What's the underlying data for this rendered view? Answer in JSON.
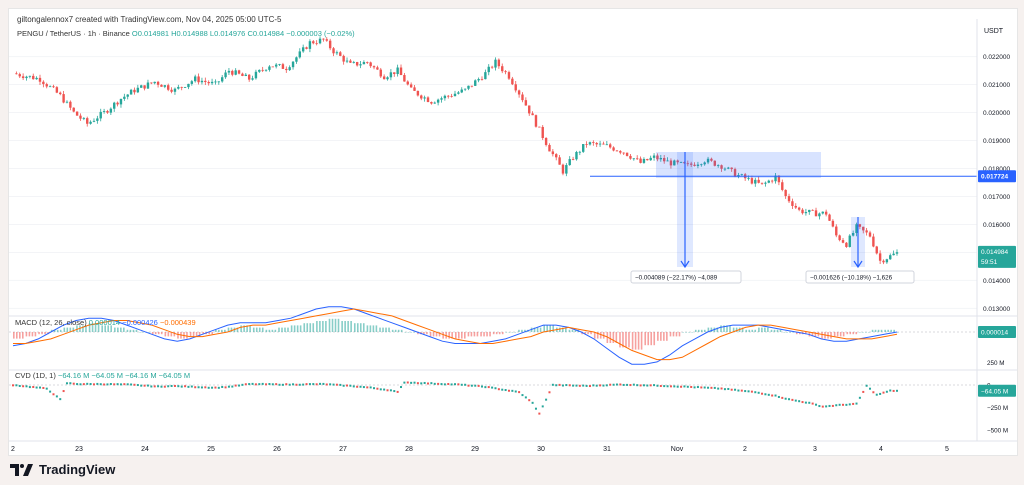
{
  "header": {
    "attribution": "giltongalennox7 created with TradingView.com, Nov 04, 2025 05:00 UTC-5",
    "symbol": "PENGU / TetherUS · 1h · Binance",
    "ohlc": "O0.014981 H0.014988 L0.014976 C0.014984 −0.000003 (−0.02%)",
    "currency": "USDT"
  },
  "macd_title": {
    "name": "MACD (12, 26, close)",
    "v1": "0.000014",
    "v2": "−0.000426",
    "v3": "−0.000439",
    "last": "0.000014"
  },
  "cvd_title": {
    "name": "CVD (1D, 1)",
    "v1": "−64.16 M",
    "v2": "−64.05 M",
    "v3": "−64.16 M",
    "v4": "−64.05 M",
    "last": "−64.05 M"
  },
  "brand": "TradingView",
  "colors": {
    "up": "#26a69a",
    "down": "#ef5350",
    "level": "#2962ff",
    "macd": "#2962ff",
    "signal": "#ff6d00"
  },
  "chart_data": {
    "type": "candlestick",
    "price_ticks": [
      "0.022000",
      "0.021000",
      "0.020000",
      "0.019000",
      "0.018000",
      "0.017000",
      "0.016000",
      "0.015000",
      "0.014000",
      "0.013000"
    ],
    "y_range": [
      0.0128,
      0.0232
    ],
    "x_labels": [
      "2",
      "23",
      "24",
      "25",
      "26",
      "27",
      "28",
      "29",
      "30",
      "31",
      "Nov",
      "2",
      "3",
      "4",
      "5"
    ],
    "level": {
      "price": 0.017724,
      "label": "0.017724"
    },
    "last_price": {
      "price": 0.014984,
      "label": "0.014984",
      "countdown": "59:51"
    },
    "measure_1": "−0.004089 (−22.17%) −4,089",
    "measure_2": "−0.001626 (−10.18%) −1,626",
    "path": [
      [
        0,
        0.0214
      ],
      [
        8,
        0.0212
      ],
      [
        14,
        0.0206
      ],
      [
        18,
        0.02
      ],
      [
        22,
        0.0196
      ],
      [
        27,
        0.02
      ],
      [
        32,
        0.0205
      ],
      [
        36,
        0.0208
      ],
      [
        42,
        0.0211
      ],
      [
        48,
        0.0208
      ],
      [
        54,
        0.0212
      ],
      [
        60,
        0.021
      ],
      [
        64,
        0.0215
      ],
      [
        70,
        0.0212
      ],
      [
        76,
        0.0217
      ],
      [
        81,
        0.0216
      ],
      [
        85,
        0.0221
      ],
      [
        88,
        0.0225
      ],
      [
        92,
        0.0226
      ],
      [
        95,
        0.0222
      ],
      [
        100,
        0.0217
      ],
      [
        105,
        0.0218
      ],
      [
        110,
        0.0213
      ],
      [
        114,
        0.0215
      ],
      [
        118,
        0.0208
      ],
      [
        124,
        0.0204
      ],
      [
        129,
        0.0206
      ],
      [
        134,
        0.0208
      ],
      [
        140,
        0.0214
      ],
      [
        143,
        0.0218
      ],
      [
        147,
        0.0213
      ],
      [
        151,
        0.0205
      ],
      [
        155,
        0.0196
      ],
      [
        159,
        0.0187
      ],
      [
        163,
        0.0179
      ],
      [
        166,
        0.0184
      ],
      [
        170,
        0.0189
      ],
      [
        176,
        0.0188
      ],
      [
        181,
        0.0186
      ],
      [
        186,
        0.0182
      ],
      [
        190,
        0.0184
      ],
      [
        195,
        0.0182
      ],
      [
        200,
        0.0181
      ],
      [
        205,
        0.0183
      ],
      [
        210,
        0.0181
      ],
      [
        214,
        0.0178
      ],
      [
        218,
        0.0176
      ],
      [
        222,
        0.0174
      ],
      [
        226,
        0.0177
      ],
      [
        229,
        0.017
      ],
      [
        233,
        0.0165
      ],
      [
        237,
        0.0164
      ],
      [
        241,
        0.0164
      ],
      [
        244,
        0.0156
      ],
      [
        247,
        0.0153
      ],
      [
        250,
        0.0159
      ],
      [
        254,
        0.0156
      ],
      [
        257,
        0.0147
      ],
      [
        262,
        0.01498
      ]
    ],
    "macd": {
      "hist": [
        -3,
        -2,
        -1,
        1,
        2,
        3,
        4,
        3,
        2,
        1,
        0,
        -1,
        -2,
        -3,
        -2,
        -1,
        1,
        2,
        3,
        2,
        1,
        2,
        3,
        4,
        5,
        6,
        5,
        4,
        3,
        2,
        1,
        0,
        -1,
        -2,
        -3,
        -3,
        -2,
        -2,
        -1,
        0,
        1,
        2,
        3,
        2,
        1,
        -1,
        -3,
        -5,
        -7,
        -8,
        -6,
        -4,
        -2,
        0,
        1,
        2,
        3,
        2,
        1,
        2,
        1,
        0,
        -1,
        -2,
        -3,
        -2,
        -1,
        0,
        1,
        1,
        0
      ],
      "macd_line": [
        -6,
        -5,
        -3,
        0,
        3,
        5,
        6,
        6,
        5,
        3,
        1,
        -1,
        -3,
        -4,
        -3,
        -1,
        1,
        3,
        4,
        4,
        4,
        5,
        6,
        8,
        10,
        11,
        11,
        10,
        8,
        6,
        4,
        2,
        0,
        -2,
        -4,
        -5,
        -5,
        -5,
        -4,
        -3,
        -1,
        1,
        3,
        3,
        2,
        0,
        -3,
        -7,
        -11,
        -14,
        -14,
        -13,
        -10,
        -6,
        -3,
        0,
        2,
        3,
        3,
        3,
        2,
        1,
        0,
        -1,
        -3,
        -4,
        -4,
        -3,
        -2,
        -1,
        0
      ],
      "signal_line": [
        -5,
        -5,
        -4,
        -3,
        -1,
        1,
        3,
        4,
        5,
        5,
        4,
        3,
        1,
        -1,
        -2,
        -2,
        -1,
        0,
        2,
        3,
        3,
        4,
        5,
        6,
        7,
        8,
        9,
        10,
        9,
        8,
        7,
        5,
        3,
        1,
        -1,
        -3,
        -4,
        -5,
        -5,
        -4,
        -3,
        -2,
        0,
        1,
        2,
        1,
        0,
        -2,
        -5,
        -8,
        -10,
        -12,
        -12,
        -11,
        -8,
        -5,
        -2,
        0,
        2,
        3,
        3,
        2,
        1,
        0,
        -1,
        -2,
        -3,
        -3,
        -3,
        -2,
        -1
      ],
      "last_value": 1.4e-05
    },
    "cvd": {
      "ticks": [
        "250 M",
        "0",
        "−250 M",
        "−500 M"
      ],
      "path": [
        [
          0,
          0
        ],
        [
          10,
          -40
        ],
        [
          12,
          -100
        ],
        [
          14,
          -160
        ],
        [
          16,
          20
        ],
        [
          20,
          10
        ],
        [
          26,
          10
        ],
        [
          34,
          5
        ],
        [
          44,
          -20
        ],
        [
          46,
          -10
        ],
        [
          60,
          -30
        ],
        [
          64,
          -20
        ],
        [
          70,
          10
        ],
        [
          82,
          5
        ],
        [
          92,
          10
        ],
        [
          100,
          -10
        ],
        [
          106,
          -30
        ],
        [
          112,
          -60
        ],
        [
          114,
          -80
        ],
        [
          116,
          30
        ],
        [
          122,
          20
        ],
        [
          132,
          5
        ],
        [
          140,
          -20
        ],
        [
          150,
          -80
        ],
        [
          154,
          -200
        ],
        [
          156,
          -320
        ],
        [
          160,
          0
        ],
        [
          170,
          -10
        ],
        [
          180,
          5
        ],
        [
          190,
          -5
        ],
        [
          200,
          -20
        ],
        [
          210,
          -40
        ],
        [
          220,
          -80
        ],
        [
          226,
          -120
        ],
        [
          230,
          -160
        ],
        [
          236,
          -200
        ],
        [
          240,
          -240
        ],
        [
          246,
          -220
        ],
        [
          250,
          -210
        ],
        [
          253,
          -10
        ],
        [
          256,
          -110
        ],
        [
          260,
          -64
        ]
      ]
    }
  }
}
